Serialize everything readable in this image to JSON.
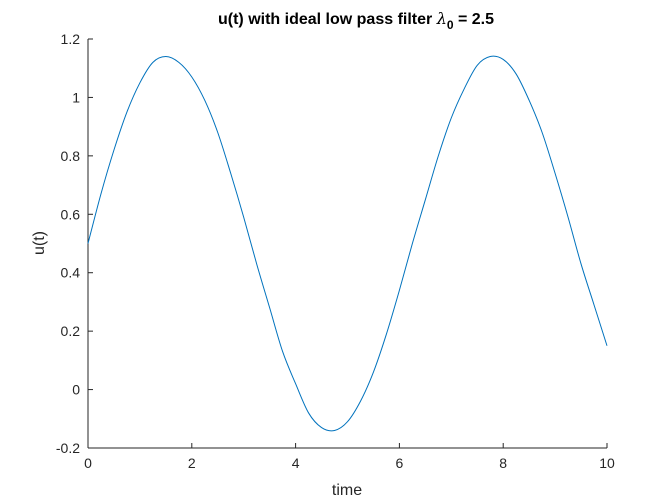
{
  "chart_data": {
    "type": "line",
    "title": {
      "main": "u(t) with ideal low pass filter ",
      "symbol": "λ",
      "subscript": "0",
      "value": " = 2.5"
    },
    "xlabel": "time",
    "ylabel": "u(t)",
    "xlim": [
      0,
      10
    ],
    "ylim": [
      -0.2,
      1.2
    ],
    "xticks": [
      0,
      2,
      4,
      6,
      8,
      10
    ],
    "xtick_labels": [
      "0",
      "2",
      "4",
      "6",
      "8",
      "10"
    ],
    "yticks": [
      -0.2,
      0,
      0.2,
      0.4,
      0.6,
      0.8,
      1,
      1.2
    ],
    "ytick_labels": [
      "-0.2",
      "0",
      "0.2",
      "0.4",
      "0.6",
      "0.8",
      "1",
      "1.2"
    ],
    "grid": false,
    "series": [
      {
        "color": "#0072BD",
        "x": [
          0,
          0.25,
          0.5,
          0.75,
          1,
          1.25,
          1.5,
          1.75,
          2,
          2.25,
          2.5,
          2.75,
          3,
          3.25,
          3.5,
          3.75,
          4,
          4.25,
          4.5,
          4.75,
          5,
          5.25,
          5.5,
          5.75,
          6,
          6.25,
          6.5,
          6.75,
          7,
          7.25,
          7.5,
          7.75,
          8,
          8.25,
          8.5,
          8.75,
          9,
          9.25,
          9.5,
          9.75,
          10
        ],
        "y": [
          0.5,
          0.67,
          0.82,
          0.95,
          1.05,
          1.12,
          1.14,
          1.12,
          1.07,
          0.99,
          0.88,
          0.74,
          0.59,
          0.43,
          0.28,
          0.13,
          0.02,
          -0.08,
          -0.13,
          -0.14,
          -0.11,
          -0.04,
          0.06,
          0.19,
          0.34,
          0.5,
          0.65,
          0.8,
          0.93,
          1.03,
          1.11,
          1.14,
          1.13,
          1.08,
          0.99,
          0.88,
          0.74,
          0.59,
          0.43,
          0.29,
          0.15
        ]
      }
    ]
  }
}
